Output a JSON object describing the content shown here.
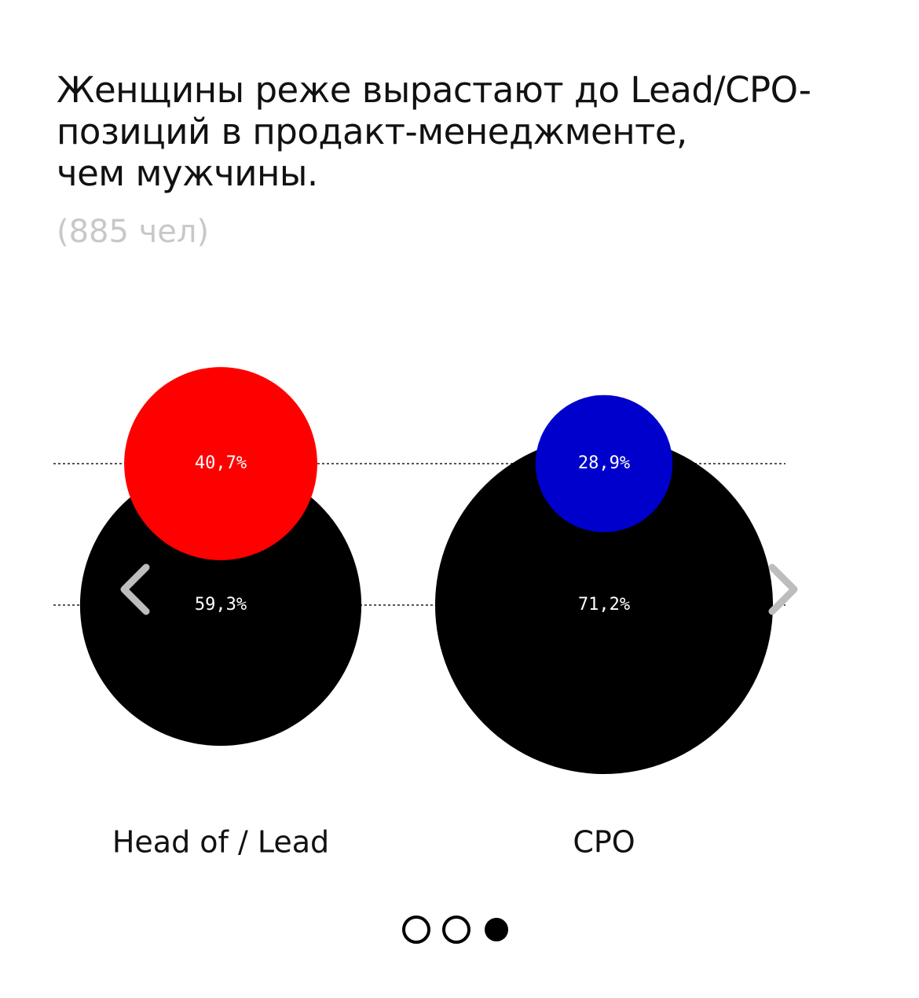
{
  "chart_data": {
    "type": "bubble",
    "title": "Женщины реже вырастают до Lead/CPO-\nпозиций в продакт-менеджменте,\nчем мужчины.",
    "subtitle": "(885 чел)",
    "categories": [
      "Head of / Lead",
      "CPO"
    ],
    "series": [
      {
        "colors": [
          "#ff0000",
          "#0000cc"
        ],
        "values": [
          40.7,
          28.9
        ],
        "value_labels": [
          "40,7%",
          "28,9%"
        ]
      },
      {
        "colors": [
          "#000000",
          "#000000"
        ],
        "values": [
          59.3,
          71.2
        ],
        "value_labels": [
          "59,3%",
          "71,2%"
        ]
      }
    ]
  }
}
